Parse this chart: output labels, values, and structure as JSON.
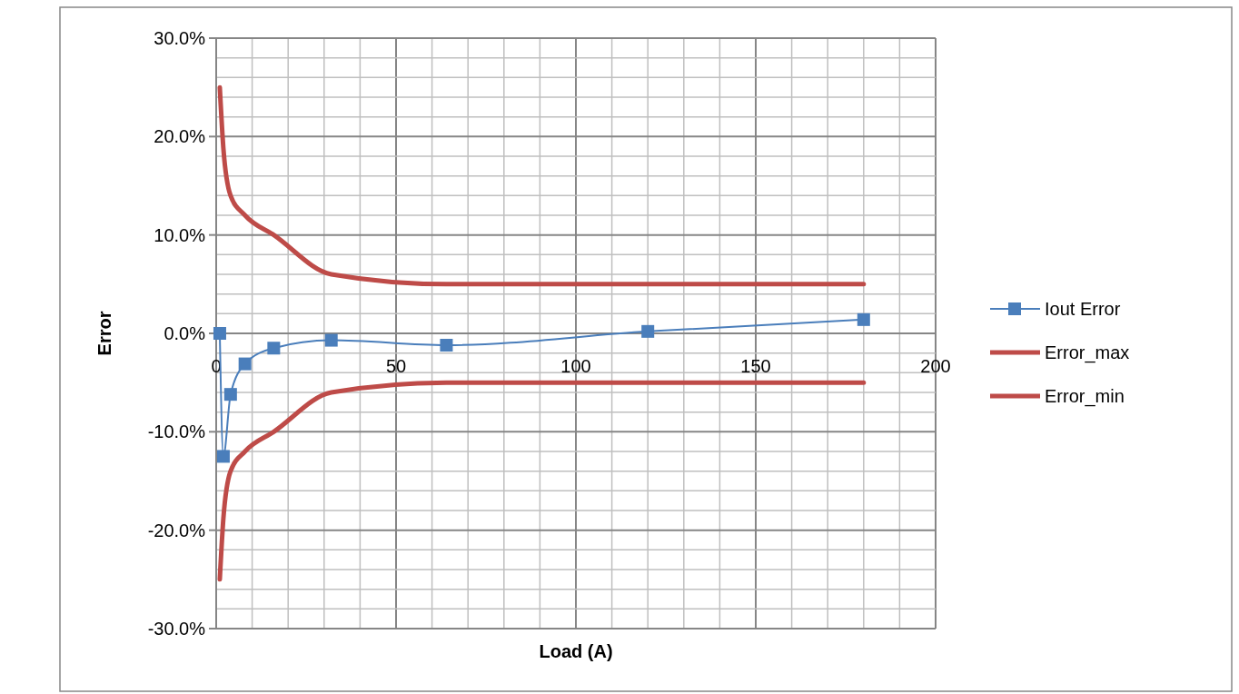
{
  "chart_data": {
    "type": "line",
    "xlabel": "Load (A)",
    "ylabel": "Error",
    "xlim": [
      0,
      200
    ],
    "xticks": [
      0,
      {
        "value": 10,
        "label": null
      },
      {
        "value": 20,
        "label": null
      },
      {
        "value": 30,
        "label": null
      },
      {
        "value": 40,
        "label": null
      },
      50,
      {
        "value": 60,
        "label": null
      },
      {
        "value": 70,
        "label": null
      },
      {
        "value": 80,
        "label": null
      },
      {
        "value": 90,
        "label": null
      },
      100,
      {
        "value": 110,
        "label": null
      },
      {
        "value": 120,
        "label": null
      },
      {
        "value": 130,
        "label": null
      },
      {
        "value": 140,
        "label": null
      },
      150,
      {
        "value": 160,
        "label": null
      },
      {
        "value": 170,
        "label": null
      },
      {
        "value": 180,
        "label": null
      },
      {
        "value": 190,
        "label": null
      },
      200
    ],
    "ylim": [
      -30,
      30
    ],
    "yticks": [
      {
        "value": -30,
        "label": "-30.0%"
      },
      {
        "value": -28,
        "label": null
      },
      {
        "value": -26,
        "label": null
      },
      {
        "value": -24,
        "label": null
      },
      {
        "value": -22,
        "label": null
      },
      {
        "value": -20,
        "label": "-20.0%"
      },
      {
        "value": -18,
        "label": null
      },
      {
        "value": -16,
        "label": null
      },
      {
        "value": -14,
        "label": null
      },
      {
        "value": -12,
        "label": null
      },
      {
        "value": -10,
        "label": "-10.0%"
      },
      {
        "value": -8,
        "label": null
      },
      {
        "value": -6,
        "label": null
      },
      {
        "value": -4,
        "label": null
      },
      {
        "value": -2,
        "label": null
      },
      {
        "value": 0,
        "label": "0.0%"
      },
      {
        "value": 2,
        "label": null
      },
      {
        "value": 4,
        "label": null
      },
      {
        "value": 6,
        "label": null
      },
      {
        "value": 8,
        "label": null
      },
      {
        "value": 10,
        "label": "10.0%"
      },
      {
        "value": 12,
        "label": null
      },
      {
        "value": 14,
        "label": null
      },
      {
        "value": 16,
        "label": null
      },
      {
        "value": 18,
        "label": null
      },
      {
        "value": 20,
        "label": "20.0%"
      },
      {
        "value": 22,
        "label": null
      },
      {
        "value": 24,
        "label": null
      },
      {
        "value": 26,
        "label": null
      },
      {
        "value": 28,
        "label": null
      },
      {
        "value": 30,
        "label": "30.0%"
      }
    ],
    "grid": true,
    "legend": "right",
    "series": [
      {
        "name": "Iout Error",
        "color": "#4a7ebb",
        "marker": "square",
        "x": [
          1,
          2,
          4,
          8,
          16,
          32,
          64,
          120,
          180
        ],
        "values": [
          0,
          -12.5,
          -6.2,
          -3.1,
          -1.5,
          -0.7,
          -1.2,
          0.2,
          1.4
        ]
      },
      {
        "name": "Error_max",
        "color": "#be4b48",
        "marker": "none",
        "x": [
          1,
          2,
          4,
          8,
          16,
          32,
          64,
          120,
          180
        ],
        "values": [
          25,
          18.8,
          14,
          12,
          10,
          6,
          5,
          5,
          5
        ]
      },
      {
        "name": "Error_min",
        "color": "#be4b48",
        "marker": "none",
        "x": [
          1,
          2,
          4,
          8,
          16,
          32,
          64,
          120,
          180
        ],
        "values": [
          -25,
          -18.8,
          -14,
          -12,
          -10,
          -6,
          -5,
          -5,
          -5
        ]
      }
    ]
  }
}
